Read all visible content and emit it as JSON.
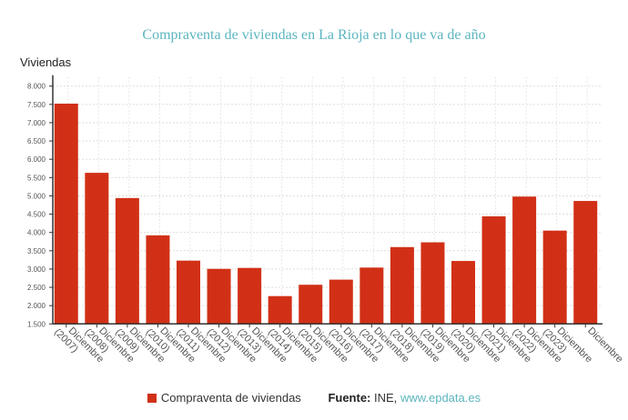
{
  "chart_data": {
    "type": "bar",
    "title": "Compraventa de viviendas en La Rioja en lo que va de año",
    "ylabel": "Viviendas",
    "xlabel": "",
    "ylim": [
      1500,
      8000
    ],
    "yticks": [
      1500,
      2000,
      2500,
      3000,
      3500,
      4000,
      4500,
      5000,
      5500,
      6000,
      6500,
      7000,
      7500,
      8000
    ],
    "ytick_labels": [
      "1.500",
      "2.000",
      "2.500",
      "3.000",
      "3.500",
      "4.000",
      "4.500",
      "5.000",
      "5.500",
      "6.000",
      "6.500",
      "7.000",
      "7.500",
      "8.000"
    ],
    "grid": true,
    "legend_position": "bottom",
    "color": "#d13016",
    "categories": [
      [
        "Diciembre",
        "(2007)"
      ],
      [
        "Diciembre",
        "(2008)"
      ],
      [
        "Diciembre",
        "(2009)"
      ],
      [
        "Diciembre",
        "(2010)"
      ],
      [
        "Diciembre",
        "(2011)"
      ],
      [
        "Diciembre",
        "(2012)"
      ],
      [
        "Diciembre",
        "(2013)"
      ],
      [
        "Diciembre",
        "(2014)"
      ],
      [
        "Diciembre",
        "(2015)"
      ],
      [
        "Diciembre",
        "(2016)"
      ],
      [
        "Diciembre",
        "(2017)"
      ],
      [
        "Diciembre",
        "(2018)"
      ],
      [
        "Diciembre",
        "(2019)"
      ],
      [
        "Diciembre",
        "(2020)"
      ],
      [
        "Diciembre",
        "(2021)"
      ],
      [
        "Diciembre",
        "(2022)"
      ],
      [
        "Diciembre",
        "(2023)"
      ],
      [
        "Diciembre",
        ""
      ]
    ],
    "series": [
      {
        "name": "Compraventa de viviendas",
        "values": [
          7520,
          5630,
          4940,
          3920,
          3230,
          3005,
          3030,
          2260,
          2570,
          2710,
          3040,
          3600,
          3730,
          3220,
          4440,
          4980,
          4050,
          4860
        ]
      }
    ]
  },
  "footer": {
    "source_label": "Fuente:",
    "source_value": "INE,",
    "source_link": "www.epdata.es"
  }
}
